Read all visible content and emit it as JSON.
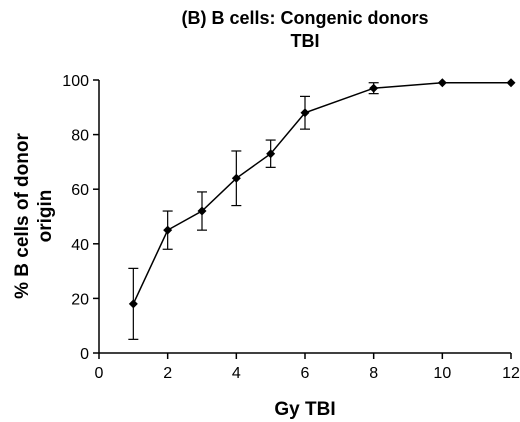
{
  "chart_data": {
    "type": "line",
    "title": "(B) B cells: Congenic donors",
    "subtitle": "TBI",
    "xlabel": "Gy TBI",
    "ylabel_lines": [
      "% B cells of donor",
      "origin"
    ],
    "xlim": [
      0,
      12
    ],
    "ylim": [
      0,
      100
    ],
    "xticks": [
      0,
      2,
      4,
      6,
      8,
      10,
      12
    ],
    "yticks": [
      0,
      20,
      40,
      60,
      80,
      100
    ],
    "grid": false,
    "series": [
      {
        "x": [
          1,
          2,
          3,
          4,
          5,
          6,
          8,
          10,
          12
        ],
        "y": [
          18,
          45,
          52,
          64,
          73,
          88,
          97,
          99,
          99
        ],
        "err_low": [
          5,
          38,
          45,
          54,
          68,
          82,
          95,
          99,
          99
        ],
        "err_high": [
          31,
          52,
          59,
          74,
          78,
          94,
          99,
          99,
          99
        ],
        "color": "#000000",
        "marker": "diamond"
      }
    ]
  }
}
